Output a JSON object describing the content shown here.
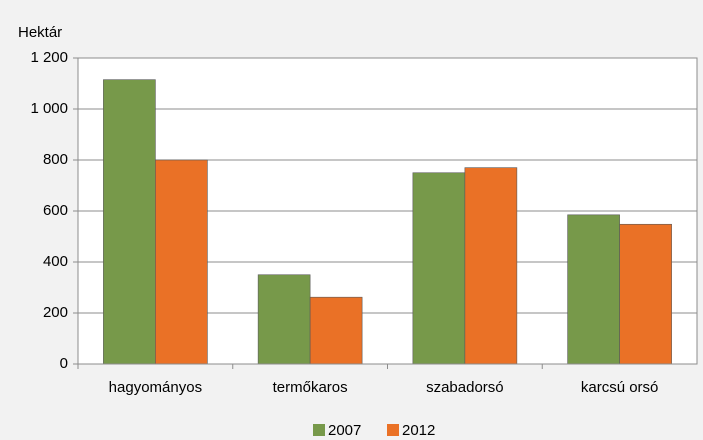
{
  "chart_data": {
    "type": "bar",
    "y_label": "Hektár",
    "categories": [
      "hagyományos",
      "termőkaros",
      "szabadorsó",
      "karcsú orsó"
    ],
    "series": [
      {
        "name": "2007",
        "color": "#77994a",
        "values": [
          1115,
          350,
          750,
          585
        ]
      },
      {
        "name": "2012",
        "color": "#ea7126",
        "values": [
          800,
          262,
          770,
          548
        ]
      }
    ],
    "ylim": [
      0,
      1200
    ],
    "yticks": [
      0,
      200,
      400,
      600,
      800,
      {
        "value": 1000,
        "label": "1 000"
      },
      {
        "value": 1200,
        "label": "1 200"
      }
    ],
    "grid": true,
    "legend": "bottom"
  }
}
